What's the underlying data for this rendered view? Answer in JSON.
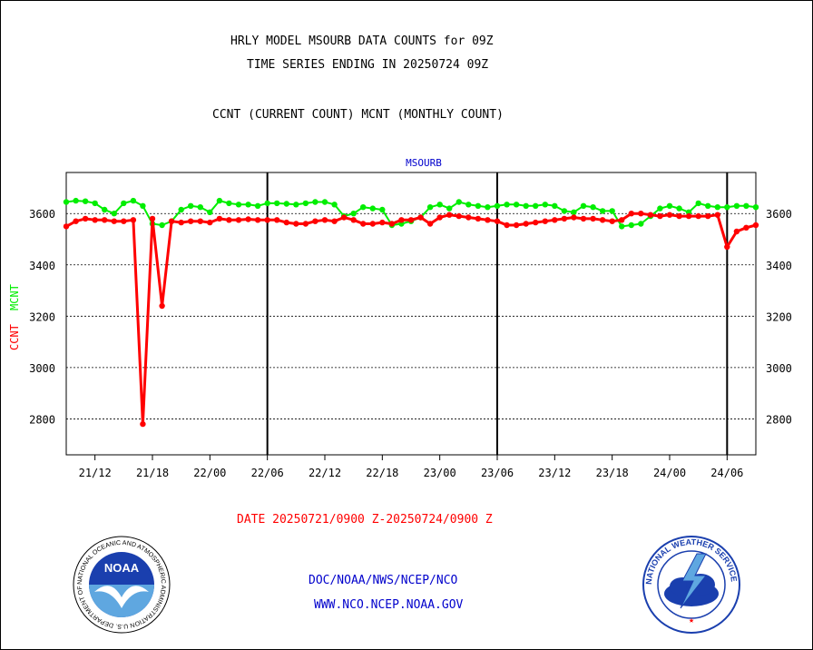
{
  "header": {
    "title_line1": "HRLY MODEL MSOURB DATA COUNTS for 09Z",
    "title_line2": "TIME SERIES ENDING IN 20250724 09Z",
    "legend_line": "CCNT (CURRENT COUNT) MCNT (MONTHLY COUNT)"
  },
  "footer": {
    "date_range": "DATE 20250721/0900 Z-20250724/0900 Z",
    "org_path": "DOC/NOAA/NWS/NCEP/NCO",
    "website": "WWW.NCO.NCEP.NOAA.GOV"
  },
  "logos": {
    "noaa": {
      "text": "NOAA",
      "ring_text": "NATIONAL OCEANIC AND ATMOSPHERIC ADMINISTRATION U.S. DEPARTMENT OF COMMERCE"
    },
    "nws": {
      "ring_text": "NATIONAL WEATHER SERVICE"
    }
  },
  "colors": {
    "ccnt": "#ff0000",
    "mcnt": "#00ee00",
    "panel_label": "#0000cc",
    "footer_text": "#0000cc",
    "date_text": "#ff0000"
  },
  "chart_data": {
    "type": "line",
    "panel_label": "MSOURB",
    "ylabel_ccnt": "CCNT",
    "ylabel_mcnt": "MCNT",
    "ylim": [
      2660,
      3760
    ],
    "yticks": [
      2800,
      3000,
      3200,
      3400,
      3600
    ],
    "grid": true,
    "x_range_hours": [
      0,
      72
    ],
    "xticks": [
      {
        "hour": 3,
        "label": "21/12"
      },
      {
        "hour": 9,
        "label": "21/18"
      },
      {
        "hour": 15,
        "label": "22/00"
      },
      {
        "hour": 21,
        "label": "22/06"
      },
      {
        "hour": 27,
        "label": "22/12"
      },
      {
        "hour": 33,
        "label": "22/18"
      },
      {
        "hour": 39,
        "label": "23/00"
      },
      {
        "hour": 45,
        "label": "23/06"
      },
      {
        "hour": 51,
        "label": "23/12"
      },
      {
        "hour": 57,
        "label": "23/18"
      },
      {
        "hour": 63,
        "label": "24/00"
      },
      {
        "hour": 69,
        "label": "24/06"
      }
    ],
    "day_boundaries": [
      21,
      45,
      69
    ],
    "series": [
      {
        "name": "MCNT",
        "color": "#00ee00",
        "values": [
          3645,
          3650,
          3648,
          3640,
          3615,
          3600,
          3640,
          3650,
          3630,
          3560,
          3555,
          3570,
          3615,
          3630,
          3625,
          3605,
          3650,
          3640,
          3635,
          3635,
          3630,
          3640,
          3640,
          3638,
          3635,
          3640,
          3645,
          3645,
          3635,
          3590,
          3600,
          3625,
          3620,
          3615,
          3555,
          3560,
          3570,
          3585,
          3625,
          3635,
          3620,
          3645,
          3635,
          3630,
          3625,
          3630,
          3635,
          3635,
          3630,
          3630,
          3635,
          3630,
          3610,
          3605,
          3630,
          3625,
          3610,
          3610,
          3550,
          3555,
          3560,
          3590,
          3620,
          3630,
          3620,
          3605,
          3640,
          3630,
          3625,
          3625,
          3630,
          3630,
          3625
        ]
      },
      {
        "name": "CCNT",
        "color": "#ff0000",
        "values": [
          3550,
          3570,
          3580,
          3575,
          3575,
          3570,
          3570,
          3575,
          2780,
          3580,
          3240,
          3570,
          3565,
          3570,
          3570,
          3565,
          3580,
          3575,
          3575,
          3578,
          3575,
          3575,
          3575,
          3565,
          3560,
          3560,
          3570,
          3575,
          3570,
          3585,
          3575,
          3560,
          3560,
          3565,
          3560,
          3575,
          3575,
          3585,
          3560,
          3585,
          3595,
          3590,
          3585,
          3580,
          3575,
          3570,
          3555,
          3555,
          3560,
          3565,
          3570,
          3575,
          3580,
          3585,
          3580,
          3580,
          3575,
          3570,
          3575,
          3600,
          3600,
          3595,
          3590,
          3595,
          3590,
          3590,
          3590,
          3590,
          3595,
          3470,
          3530,
          3545,
          3555
        ]
      }
    ]
  }
}
